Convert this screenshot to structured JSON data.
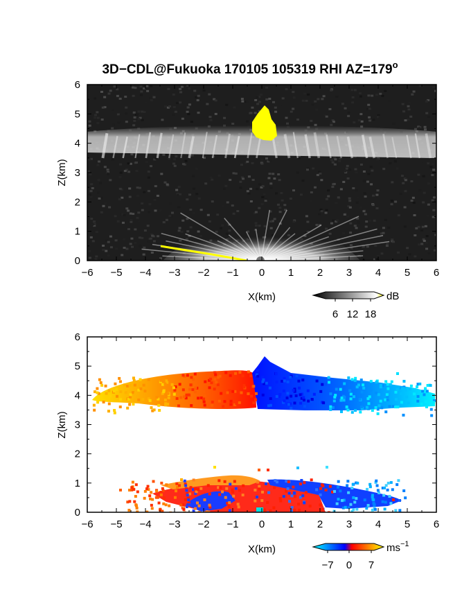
{
  "chart_data": {
    "type": "heatmap",
    "title": "3D−CDL@Fukuoka 170105 105319 RHI AZ=179",
    "title_superscript": "o",
    "panels": [
      {
        "id": "intensity",
        "field": "backscatter intensity",
        "xlabel": "X(km)",
        "ylabel": "Z(km)",
        "xlim": [
          -6,
          6
        ],
        "ylim": [
          0,
          6
        ],
        "x_ticks": [
          "−6",
          "−5",
          "−4",
          "−3",
          "−2",
          "−1",
          "0",
          "1",
          "2",
          "3",
          "4",
          "5",
          "6"
        ],
        "y_ticks": [
          "0",
          "1",
          "2",
          "3",
          "4",
          "5",
          "6"
        ],
        "background_color": "#1c1c1c",
        "colorbar": {
          "unit": "dB",
          "ticks": [
            "6",
            "12",
            "18"
          ],
          "colors": [
            "#000000",
            "#ffffff",
            "#ffff00"
          ]
        },
        "features": [
          {
            "name": "cloud layer",
            "z_range_km": [
              3.6,
              4.8
            ],
            "x_range_km": [
              -6,
              6
            ],
            "color": "#b8b8b8"
          },
          {
            "name": "saturated core",
            "z_range_km": [
              4.0,
              5.2
            ],
            "x_range_km": [
              -0.3,
              0.6
            ],
            "color": "#ffff00"
          },
          {
            "name": "near-ground echo",
            "z_range_km": [
              0,
              0.8
            ],
            "x_range_km": [
              -3.5,
              3.5
            ],
            "color": "#d0d0d0"
          }
        ]
      },
      {
        "id": "velocity",
        "field": "radial velocity",
        "xlabel": "X(km)",
        "ylabel": "Z(km)",
        "xlim": [
          -6,
          6
        ],
        "ylim": [
          0,
          6
        ],
        "x_ticks": [
          "−6",
          "−5",
          "−4",
          "−3",
          "−2",
          "−1",
          "0",
          "1",
          "2",
          "3",
          "4",
          "5",
          "6"
        ],
        "y_ticks": [
          "0",
          "1",
          "2",
          "3",
          "4",
          "5",
          "6"
        ],
        "colorbar": {
          "unit": "ms",
          "unit_superscript": "−1",
          "ticks": [
            "−7",
            "0",
            "7"
          ],
          "colors": [
            "#00ffff",
            "#0000ff",
            "#ff0000",
            "#ffff00"
          ]
        },
        "features": [
          {
            "name": "cloud layer approaching",
            "z_range_km": [
              3.7,
              4.7
            ],
            "x_range_km": [
              -5.8,
              -0.3
            ],
            "velocity_ms": [
              2,
              7
            ]
          },
          {
            "name": "cloud layer receding",
            "z_range_km": [
              3.6,
              5.3
            ],
            "x_range_km": [
              -0.3,
              6
            ],
            "velocity_ms": [
              -7,
              -2
            ]
          },
          {
            "name": "boundary layer",
            "z_range_km": [
              0,
              1.5
            ],
            "x_range_km": [
              -5,
              5
            ],
            "velocity_ms": [
              -7,
              7
            ]
          }
        ]
      }
    ]
  }
}
